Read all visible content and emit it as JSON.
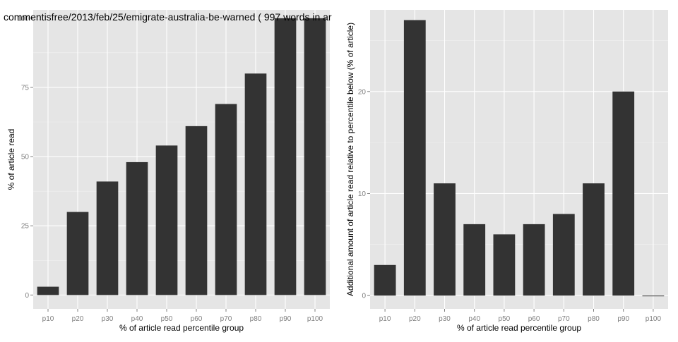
{
  "chart_data": [
    {
      "type": "bar",
      "title": "commentisfree/2013/feb/25/emigrate-australia-be-warned ( 997 words in ar",
      "xlabel": "% of article read percentile group",
      "ylabel": "% of article read",
      "categories": [
        "p10",
        "p20",
        "p30",
        "p40",
        "p50",
        "p60",
        "p70",
        "p80",
        "p90",
        "p100"
      ],
      "values": [
        3,
        30,
        41,
        48,
        54,
        61,
        69,
        80,
        100,
        100
      ],
      "ylim": [
        -5,
        103
      ],
      "yticks": [
        0,
        25,
        50,
        75,
        100
      ],
      "grid": true,
      "bar_color": "#333333",
      "panel_color": "#e5e5e5",
      "grid_color": "#ffffff"
    },
    {
      "type": "bar",
      "title": "",
      "xlabel": "% of article read percentile group",
      "ylabel": "Additional amount of article read relative to percentile below (% of article)",
      "categories": [
        "p10",
        "p20",
        "p30",
        "p40",
        "p50",
        "p60",
        "p70",
        "p80",
        "p90",
        "p100"
      ],
      "values": [
        3,
        27,
        11,
        7,
        6,
        7,
        8,
        11,
        20,
        0
      ],
      "ylim": [
        -1.3,
        28
      ],
      "yticks": [
        0,
        10,
        20
      ],
      "grid": true,
      "bar_color": "#333333",
      "panel_color": "#e5e5e5",
      "grid_color": "#ffffff"
    }
  ]
}
